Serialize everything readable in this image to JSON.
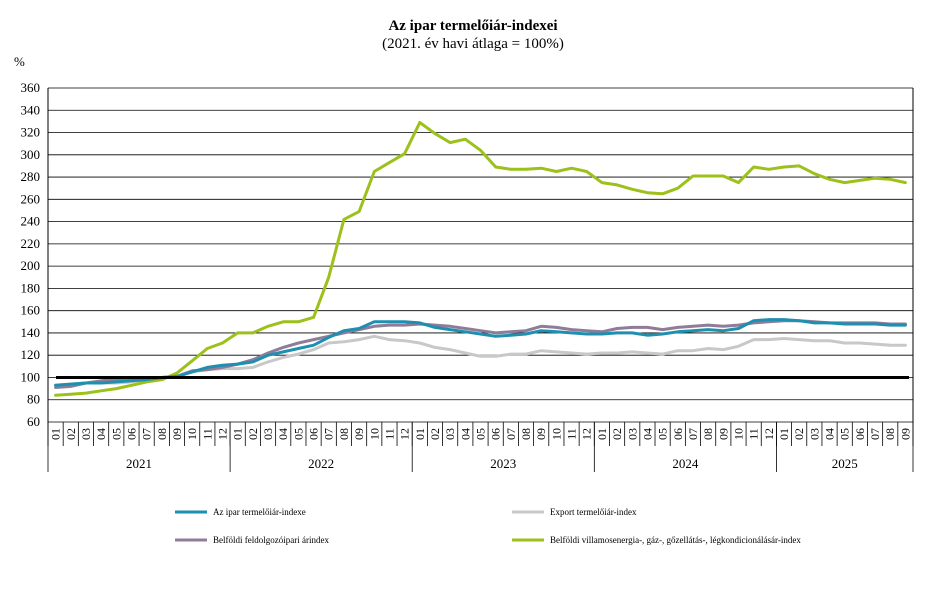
{
  "chart_data": {
    "type": "line",
    "title": "Az ipar termelőiár-indexei",
    "subtitle": "(2021. év havi átlaga = 100%)",
    "ylabel": "%",
    "ylim": [
      60,
      360
    ],
    "yticks": [
      60,
      80,
      100,
      120,
      140,
      160,
      180,
      200,
      220,
      240,
      260,
      280,
      300,
      320,
      340,
      360
    ],
    "grid": true,
    "legend_position": "bottom",
    "x": [
      "01",
      "02",
      "03",
      "04",
      "05",
      "06",
      "07",
      "08",
      "09",
      "10",
      "11",
      "12",
      "01",
      "02",
      "03",
      "04",
      "05",
      "06",
      "07",
      "08",
      "09",
      "10",
      "11",
      "12",
      "01",
      "02",
      "03",
      "04",
      "05",
      "06",
      "07",
      "08",
      "09",
      "10",
      "11",
      "12",
      "01",
      "02",
      "03",
      "04",
      "05",
      "06",
      "07",
      "08",
      "09",
      "10",
      "11",
      "12",
      "01",
      "02",
      "03",
      "04",
      "05",
      "06",
      "07",
      "08",
      "09"
    ],
    "years": [
      {
        "label": "2021",
        "months": 12
      },
      {
        "label": "2022",
        "months": 12
      },
      {
        "label": "2023",
        "months": 12
      },
      {
        "label": "2024",
        "months": 12
      },
      {
        "label": "2025",
        "months": 9
      }
    ],
    "reference_line": 100,
    "series": [
      {
        "name": "Export termelőiár-index",
        "color": "#c8c8c8",
        "values": [
          93,
          94,
          95,
          95,
          95,
          96,
          98,
          100,
          101,
          105,
          107,
          108,
          108,
          109,
          114,
          118,
          121,
          125,
          131,
          132,
          134,
          137,
          134,
          133,
          131,
          127,
          125,
          122,
          119,
          119,
          121,
          121,
          124,
          123,
          122,
          121,
          122,
          122,
          123,
          122,
          121,
          124,
          124,
          126,
          125,
          128,
          134,
          134,
          135,
          134,
          133,
          133,
          131,
          131,
          130,
          129,
          129
        ]
      },
      {
        "name": "Belföldi feldolgozóipari árindex",
        "color": "#8e7c99",
        "values": [
          91,
          92,
          95,
          97,
          98,
          99,
          100,
          100,
          101,
          106,
          107,
          109,
          112,
          116,
          122,
          127,
          131,
          134,
          137,
          140,
          143,
          146,
          147,
          147,
          148,
          147,
          146,
          144,
          142,
          140,
          141,
          142,
          146,
          145,
          143,
          142,
          141,
          144,
          145,
          145,
          143,
          145,
          146,
          147,
          146,
          147,
          149,
          150,
          151,
          151,
          150,
          149,
          149,
          149,
          149,
          148,
          148
        ]
      },
      {
        "name": "Belföldi villamosenergia-, gáz-, gőzellátás-, légkondicionálásár-index",
        "color": "#9bc11a",
        "values": [
          84,
          85,
          86,
          88,
          90,
          93,
          96,
          98,
          104,
          115,
          126,
          131,
          140,
          140,
          146,
          150,
          150,
          154,
          190,
          242,
          249,
          285,
          293,
          301,
          329,
          319,
          311,
          314,
          304,
          289,
          287,
          287,
          288,
          285,
          288,
          285,
          275,
          273,
          269,
          266,
          265,
          270,
          281,
          281,
          281,
          275,
          289,
          287,
          289,
          290,
          283,
          278,
          275,
          277,
          279,
          278,
          275
        ]
      },
      {
        "name": "Az ipar termelőiár-indexe",
        "color": "#1f8fb0",
        "values": [
          93,
          94,
          95,
          95,
          96,
          97,
          98,
          100,
          101,
          105,
          109,
          111,
          112,
          114,
          120,
          123,
          126,
          129,
          136,
          142,
          144,
          150,
          150,
          150,
          149,
          145,
          143,
          141,
          139,
          137,
          138,
          139,
          142,
          141,
          140,
          139,
          139,
          140,
          140,
          138,
          139,
          141,
          142,
          143,
          142,
          144,
          151,
          152,
          152,
          151,
          149,
          149,
          148,
          148,
          148,
          147,
          147
        ]
      }
    ]
  },
  "legend": {
    "items": [
      {
        "label": "Az ipar termelőiár-indexe",
        "color": "#1f8fb0"
      },
      {
        "label": "Export termelőiár-index",
        "color": "#c8c8c8"
      },
      {
        "label": "Belföldi feldolgozóipari árindex",
        "color": "#8e7c99"
      },
      {
        "label": "Belföldi villamosenergia-, gáz-, gőzellátás-, légkondicionálásár-index",
        "color": "#9bc11a"
      }
    ]
  }
}
